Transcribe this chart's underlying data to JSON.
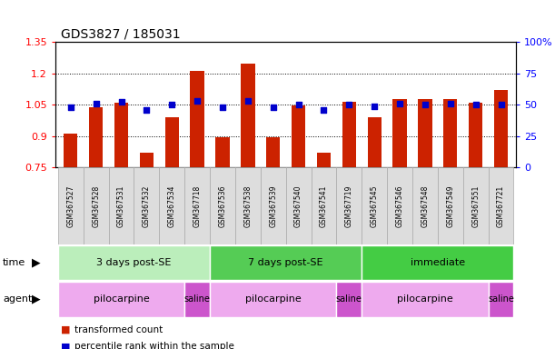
{
  "title": "GDS3827 / 185031",
  "samples": [
    "GSM367527",
    "GSM367528",
    "GSM367531",
    "GSM367532",
    "GSM367534",
    "GSM367718",
    "GSM367536",
    "GSM367538",
    "GSM367539",
    "GSM367540",
    "GSM367541",
    "GSM367719",
    "GSM367545",
    "GSM367546",
    "GSM367548",
    "GSM367549",
    "GSM367551",
    "GSM367721"
  ],
  "transformed_count": [
    0.91,
    1.04,
    1.06,
    0.82,
    0.99,
    1.21,
    0.895,
    1.245,
    0.895,
    1.048,
    0.82,
    1.065,
    0.99,
    1.075,
    1.075,
    1.075,
    1.06,
    1.12
  ],
  "percentile_rank": [
    48,
    51,
    52,
    46,
    50,
    53,
    48,
    53,
    48,
    50,
    46,
    50,
    49,
    51,
    50,
    51,
    50,
    50
  ],
  "bar_color": "#cc2200",
  "dot_color": "#0000cc",
  "ylim_left": [
    0.75,
    1.35
  ],
  "ylim_right": [
    0,
    100
  ],
  "yticks_left": [
    0.75,
    0.9,
    1.05,
    1.2,
    1.35
  ],
  "yticks_right": [
    0,
    25,
    50,
    75,
    100
  ],
  "ytick_labels_left": [
    "0.75",
    "0.9",
    "1.05",
    "1.2",
    "1.35"
  ],
  "ytick_labels_right": [
    "0",
    "25",
    "50",
    "75",
    "100%"
  ],
  "hlines": [
    0.9,
    1.05,
    1.2
  ],
  "time_groups": [
    {
      "label": "3 days post-SE",
      "start": 0,
      "end": 5,
      "color": "#bbeebb"
    },
    {
      "label": "7 days post-SE",
      "start": 6,
      "end": 11,
      "color": "#55cc55"
    },
    {
      "label": "immediate",
      "start": 12,
      "end": 17,
      "color": "#44cc44"
    }
  ],
  "agent_groups": [
    {
      "label": "pilocarpine",
      "start": 0,
      "end": 4,
      "color": "#eeaaee"
    },
    {
      "label": "saline",
      "start": 5,
      "end": 5,
      "color": "#cc55cc"
    },
    {
      "label": "pilocarpine",
      "start": 6,
      "end": 10,
      "color": "#eeaaee"
    },
    {
      "label": "saline",
      "start": 11,
      "end": 11,
      "color": "#cc55cc"
    },
    {
      "label": "pilocarpine",
      "start": 12,
      "end": 16,
      "color": "#eeaaee"
    },
    {
      "label": "saline",
      "start": 17,
      "end": 17,
      "color": "#cc55cc"
    }
  ],
  "baseline": 0.75,
  "bar_width": 0.55,
  "dot_size": 25,
  "label_box_color": "#dddddd",
  "label_box_edge": "#aaaaaa"
}
